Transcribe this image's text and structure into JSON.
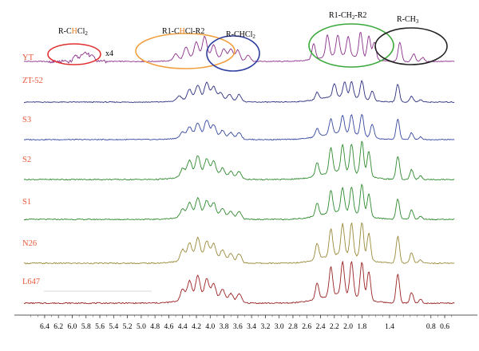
{
  "chart_data": {
    "type": "line",
    "title": "",
    "xlabel": "",
    "ylabel": "",
    "x_axis": {
      "reversed": true,
      "xlim": [
        6.7,
        0.45
      ],
      "ticks": [
        "6.4",
        "6.2",
        "6.0",
        "5.8",
        "5.6",
        "5.4",
        "5.2",
        "5.0",
        "4.8",
        "4.6",
        "4.4",
        "4.2",
        "4.0",
        "3.8",
        "3.6",
        "3.4",
        "3.2",
        "3.0",
        "2.8",
        "2.6",
        "2.4",
        "2.2",
        "2.0",
        "1.8",
        "1.4",
        "0.8",
        "0.6"
      ]
    },
    "series": [
      {
        "name": "YT",
        "color": "#8b2f8b",
        "label_color": "#e8593a",
        "inset_gain": "x4",
        "peaks": [
          [
            5.95,
            0.22
          ],
          [
            5.85,
            0.3
          ],
          [
            5.78,
            0.26
          ],
          [
            5.7,
            0.2
          ],
          [
            4.5,
            0.25
          ],
          [
            4.35,
            0.45
          ],
          [
            4.2,
            0.6
          ],
          [
            4.08,
            0.8
          ],
          [
            3.95,
            0.5
          ],
          [
            3.8,
            0.4
          ],
          [
            3.7,
            0.45
          ],
          [
            3.6,
            0.42
          ],
          [
            3.45,
            0.25
          ],
          [
            2.5,
            0.6
          ],
          [
            2.3,
            0.85
          ],
          [
            2.15,
            0.8
          ],
          [
            2.0,
            0.75
          ],
          [
            1.82,
            1.0
          ],
          [
            1.7,
            0.9
          ],
          [
            1.62,
            0.7
          ],
          [
            1.25,
            0.75
          ],
          [
            1.05,
            0.3
          ],
          [
            0.92,
            0.15
          ]
        ]
      },
      {
        "name": "ZT-52",
        "color": "#2b2f7f",
        "label_color": "#e8593a",
        "peaks": [
          [
            4.45,
            0.2
          ],
          [
            4.3,
            0.4
          ],
          [
            4.18,
            0.55
          ],
          [
            4.05,
            0.65
          ],
          [
            3.95,
            0.5
          ],
          [
            3.85,
            0.3
          ],
          [
            3.72,
            0.28
          ],
          [
            3.58,
            0.3
          ],
          [
            2.45,
            0.3
          ],
          [
            2.2,
            0.55
          ],
          [
            2.05,
            0.6
          ],
          [
            1.95,
            0.65
          ],
          [
            1.8,
            0.75
          ],
          [
            1.65,
            0.4
          ],
          [
            1.28,
            0.75
          ],
          [
            1.08,
            0.25
          ],
          [
            0.95,
            0.1
          ]
        ]
      },
      {
        "name": "S3",
        "color": "#3548a0",
        "label_color": "#e8593a",
        "peaks": [
          [
            4.4,
            0.2
          ],
          [
            4.3,
            0.35
          ],
          [
            4.18,
            0.45
          ],
          [
            4.05,
            0.55
          ],
          [
            3.95,
            0.4
          ],
          [
            3.82,
            0.25
          ],
          [
            3.7,
            0.22
          ],
          [
            3.58,
            0.25
          ],
          [
            2.45,
            0.3
          ],
          [
            2.25,
            0.55
          ],
          [
            2.08,
            0.65
          ],
          [
            1.95,
            0.7
          ],
          [
            1.8,
            0.8
          ],
          [
            1.65,
            0.5
          ],
          [
            1.28,
            0.75
          ],
          [
            1.08,
            0.25
          ],
          [
            0.95,
            0.1
          ]
        ]
      },
      {
        "name": "S2",
        "color": "#2f8a2f",
        "label_color": "#e8593a",
        "peaks": [
          [
            4.4,
            0.25
          ],
          [
            4.3,
            0.45
          ],
          [
            4.18,
            0.55
          ],
          [
            4.05,
            0.45
          ],
          [
            3.95,
            0.4
          ],
          [
            3.82,
            0.25
          ],
          [
            3.7,
            0.2
          ],
          [
            3.58,
            0.22
          ],
          [
            2.45,
            0.4
          ],
          [
            2.25,
            0.75
          ],
          [
            2.08,
            0.8
          ],
          [
            1.95,
            0.85
          ],
          [
            1.8,
            1.0
          ],
          [
            1.7,
            0.75
          ],
          [
            1.28,
            0.7
          ],
          [
            1.08,
            0.3
          ],
          [
            0.95,
            0.1
          ]
        ]
      },
      {
        "name": "S1",
        "color": "#2f8a2f",
        "label_color": "#e8593a",
        "peaks": [
          [
            4.4,
            0.25
          ],
          [
            4.3,
            0.4
          ],
          [
            4.18,
            0.5
          ],
          [
            4.05,
            0.42
          ],
          [
            3.95,
            0.38
          ],
          [
            3.82,
            0.25
          ],
          [
            3.7,
            0.2
          ],
          [
            3.58,
            0.22
          ],
          [
            2.45,
            0.4
          ],
          [
            2.25,
            0.7
          ],
          [
            2.08,
            0.75
          ],
          [
            1.95,
            0.8
          ],
          [
            1.8,
            0.95
          ],
          [
            1.7,
            0.7
          ],
          [
            1.28,
            0.65
          ],
          [
            1.08,
            0.3
          ],
          [
            0.95,
            0.1
          ]
        ]
      },
      {
        "name": "N26",
        "color": "#9a8a3a",
        "label_color": "#e8593a",
        "peaks": [
          [
            4.4,
            0.3
          ],
          [
            4.3,
            0.45
          ],
          [
            4.18,
            0.55
          ],
          [
            4.05,
            0.45
          ],
          [
            3.95,
            0.4
          ],
          [
            3.82,
            0.28
          ],
          [
            3.7,
            0.22
          ],
          [
            3.58,
            0.25
          ],
          [
            2.45,
            0.45
          ],
          [
            2.25,
            0.75
          ],
          [
            2.08,
            0.85
          ],
          [
            1.95,
            0.9
          ],
          [
            1.8,
            1.0
          ],
          [
            1.7,
            0.75
          ],
          [
            1.28,
            0.75
          ],
          [
            1.08,
            0.3
          ],
          [
            0.95,
            0.1
          ]
        ]
      },
      {
        "name": "L647",
        "color": "#9a2222",
        "label_color": "#e8593a",
        "peaks": [
          [
            4.4,
            0.3
          ],
          [
            4.3,
            0.5
          ],
          [
            4.18,
            0.6
          ],
          [
            4.05,
            0.5
          ],
          [
            3.95,
            0.4
          ],
          [
            3.82,
            0.3
          ],
          [
            3.7,
            0.22
          ],
          [
            3.58,
            0.25
          ],
          [
            2.45,
            0.45
          ],
          [
            2.25,
            0.8
          ],
          [
            2.08,
            0.9
          ],
          [
            1.95,
            0.95
          ],
          [
            1.8,
            1.0
          ],
          [
            1.7,
            0.8
          ],
          [
            1.28,
            0.8
          ],
          [
            1.08,
            0.3
          ],
          [
            0.95,
            0.1
          ]
        ]
      }
    ],
    "annotations": [
      {
        "text": "R-C",
        "highlight": "H",
        "after": "Cl",
        "sub": "2",
        "ring_color": "#e03030",
        "x": 5.8
      },
      {
        "text": "R1-C",
        "highlight": "H",
        "after": "Cl-R2",
        "sub": "",
        "ring_color": "#f0a040",
        "x": 4.15
      },
      {
        "text": "R-CH",
        "highlight": "",
        "after": "Cl",
        "sub": "2",
        "ring_color": "#2f3fa0",
        "x": 3.7
      },
      {
        "text": "R1-CH",
        "highlight": "",
        "after": "-R2",
        "sub": "2",
        "ring_color": "#3aa83a",
        "x": 2.05
      },
      {
        "text": "R-CH",
        "highlight": "",
        "after": "",
        "sub": "3",
        "ring_color": "#222222",
        "x": 1.25
      }
    ]
  }
}
